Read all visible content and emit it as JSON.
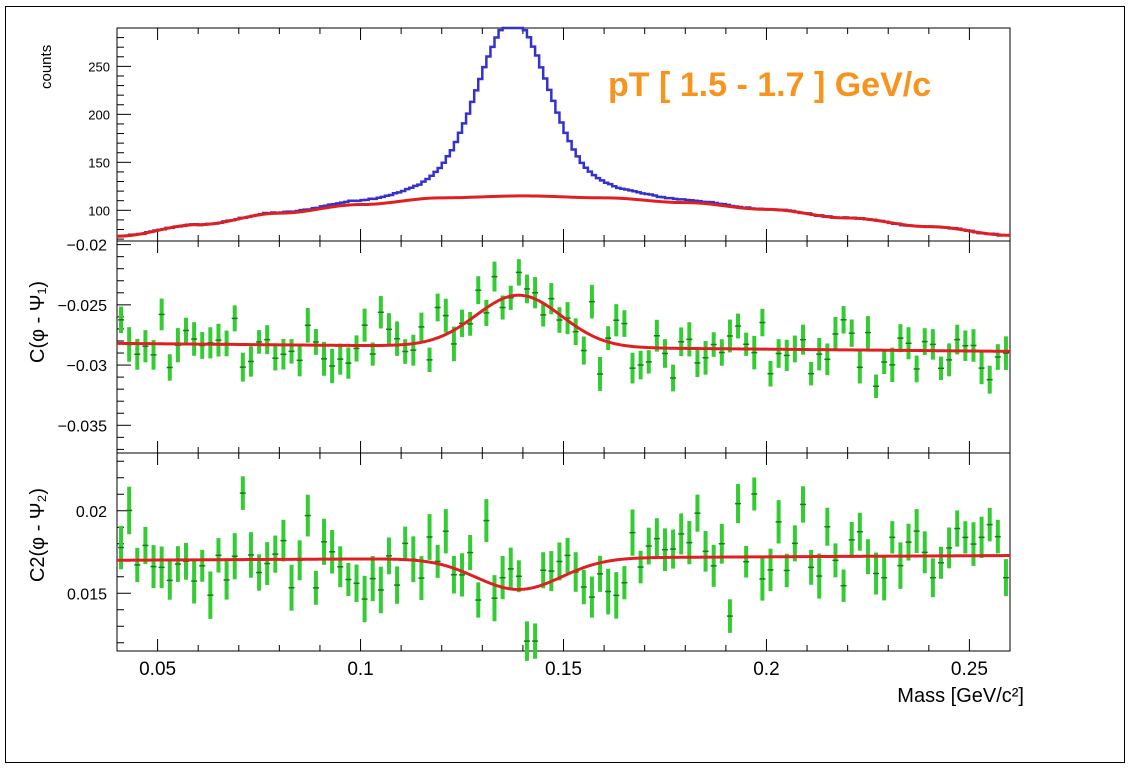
{
  "chart_data": [
    {
      "panel": "top",
      "type": "line",
      "ylabel": "counts",
      "annotation": "pT  [  1.5 - 1.7 ]  GeV/c",
      "annotation_color": "#f7941d",
      "xlim": [
        0.04,
        0.26
      ],
      "ylim": [
        68,
        290
      ],
      "yticks": [
        100,
        150,
        200,
        250
      ],
      "peak": {
        "mean": 0.1375,
        "sigma": 0.0085,
        "height": 163
      },
      "background": {
        "x": [
          0.04,
          0.06,
          0.08,
          0.1,
          0.12,
          0.14,
          0.16,
          0.18,
          0.2,
          0.22,
          0.24,
          0.26
        ],
        "y": [
          73,
          85,
          97,
          106,
          113,
          115,
          113,
          108,
          101,
          92,
          83,
          74
        ]
      },
      "series": [
        {
          "name": "data",
          "color": "#3333cc",
          "style": "step-histogram"
        },
        {
          "name": "background fit",
          "color": "#e02020",
          "style": "line"
        }
      ]
    },
    {
      "panel": "middle",
      "type": "scatter",
      "ylabel": "C(φ - Ψ₁)",
      "xlim": [
        0.04,
        0.26
      ],
      "ylim": [
        -0.0373,
        -0.0197
      ],
      "yticks": [
        -0.02,
        -0.025,
        -0.03,
        -0.035
      ],
      "ytick_labels": [
        "−0.02",
        "−0.025",
        "−0.03",
        "−0.035"
      ],
      "fit": {
        "baseline_start": -0.0282,
        "baseline_slope": -0.003,
        "peak_mean": 0.139,
        "peak_sigma": 0.0105,
        "peak_amp": 0.0043,
        "x0": 0.04
      },
      "error": 0.0012,
      "series": [
        {
          "name": "data points",
          "color": "#33cc33"
        },
        {
          "name": "fit",
          "color": "#e02020"
        }
      ]
    },
    {
      "panel": "bottom",
      "type": "scatter",
      "ylabel": "C2(φ - Ψ₂)",
      "xlabel": "Mass  [GeV/c²]",
      "xlim": [
        0.04,
        0.26
      ],
      "ylim": [
        0.0115,
        0.0235
      ],
      "yticks": [
        0.015,
        0.02
      ],
      "ytick_labels": [
        "0.015",
        "0.02"
      ],
      "xticks": [
        0.05,
        0.1,
        0.15,
        0.2,
        0.25
      ],
      "xtick_labels": [
        "0.05",
        "0.1",
        "0.15",
        "0.2",
        "0.25"
      ],
      "fit": {
        "baseline_start": 0.017,
        "baseline_slope": 0.0013,
        "peak_mean": 0.139,
        "peak_sigma": 0.0105,
        "peak_amp": -0.0019,
        "x0": 0.04
      },
      "error": 0.0012,
      "series": [
        {
          "name": "data points",
          "color": "#33cc33"
        },
        {
          "name": "fit",
          "color": "#e02020"
        }
      ]
    }
  ]
}
